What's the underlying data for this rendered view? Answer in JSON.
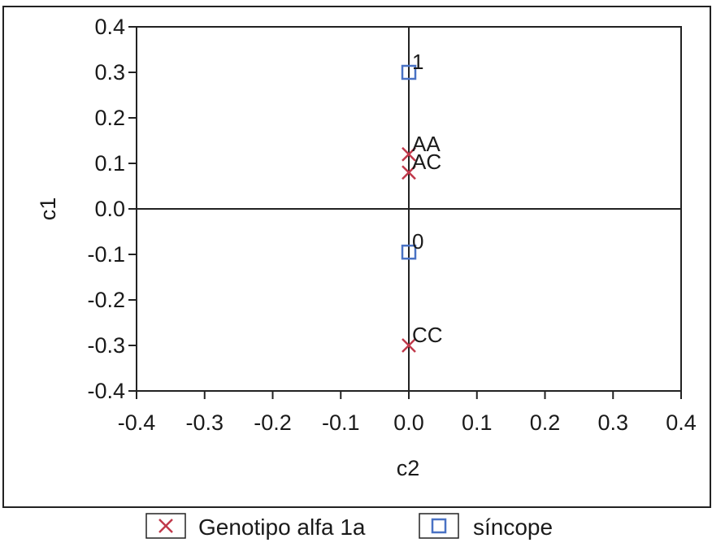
{
  "chart_data": {
    "type": "scatter",
    "xlabel": "c2",
    "ylabel": "c1",
    "xlim": [
      -0.4,
      0.4
    ],
    "ylim": [
      -0.4,
      0.4
    ],
    "x_ticks": [
      "-0.4",
      "-0.3",
      "-0.2",
      "-0.1",
      "0.0",
      "0.1",
      "0.2",
      "0.3",
      "0.4"
    ],
    "y_ticks": [
      "0.4",
      "0.3",
      "0.2",
      "0.1",
      "0.0",
      "-0.1",
      "-0.2",
      "-0.3",
      "-0.4"
    ],
    "x_tick_values": [
      -0.4,
      -0.3,
      -0.2,
      -0.1,
      0.0,
      0.1,
      0.2,
      0.3,
      0.4
    ],
    "y_tick_values": [
      0.4,
      0.3,
      0.2,
      0.1,
      0.0,
      -0.1,
      -0.2,
      -0.3,
      -0.4
    ],
    "reference_lines": {
      "x": 0.0,
      "y": 0.0
    },
    "legend_position": "bottom",
    "series": [
      {
        "name": "Genotipo alfa 1a",
        "marker": "x",
        "color": "#c0394b",
        "points": [
          {
            "label": "AA",
            "x": 0.0,
            "y": 0.12
          },
          {
            "label": "AC",
            "x": 0.0,
            "y": 0.08
          },
          {
            "label": "CC",
            "x": 0.0,
            "y": -0.3
          }
        ]
      },
      {
        "name": "síncope",
        "marker": "square",
        "color": "#4a72c4",
        "points": [
          {
            "label": "1",
            "x": 0.0,
            "y": 0.3
          },
          {
            "label": "0",
            "x": 0.0,
            "y": -0.095
          }
        ]
      }
    ]
  }
}
